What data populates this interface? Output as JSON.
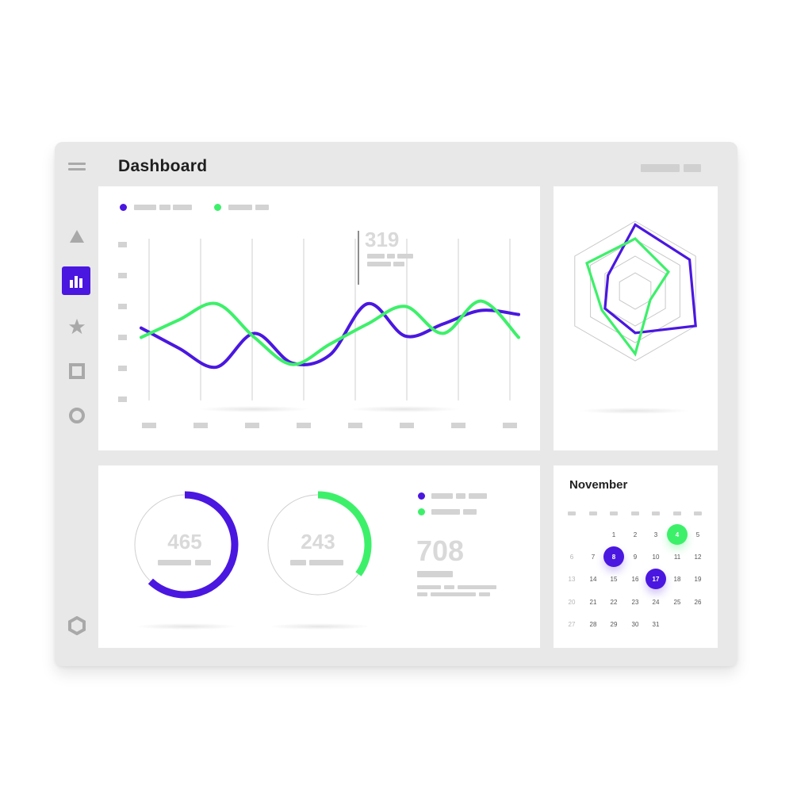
{
  "header": {
    "title": "Dashboard"
  },
  "colors": {
    "accent_purple": "#4a17e0",
    "accent_green": "#3df06a",
    "frame": "#e8e8e8",
    "placeholder": "#d3d3d3"
  },
  "sidebar": {
    "items": [
      {
        "icon": "triangle-icon",
        "active": false
      },
      {
        "icon": "bar-chart-icon",
        "active": true
      },
      {
        "icon": "star-icon",
        "active": false
      },
      {
        "icon": "square-icon",
        "active": false
      },
      {
        "icon": "circle-icon",
        "active": false
      }
    ],
    "footer_icon": "hexagon-icon"
  },
  "chart_data": [
    {
      "type": "line",
      "highlight_value": "319",
      "series": [
        {
          "color": "#4a17e0",
          "values": [
            0.42,
            0.27,
            0.13,
            0.38,
            0.16,
            0.22,
            0.6,
            0.36,
            0.45,
            0.55,
            0.52
          ]
        },
        {
          "color": "#3df06a",
          "values": [
            0.35,
            0.48,
            0.6,
            0.35,
            0.15,
            0.3,
            0.45,
            0.58,
            0.38,
            0.62,
            0.35
          ]
        }
      ]
    },
    {
      "type": "radar",
      "series": [
        {
          "color": "#4a17e0",
          "values": [
            0.95,
            0.9,
            1.0,
            0.6,
            0.5,
            0.45
          ]
        },
        {
          "color": "#3df06a",
          "values": [
            0.75,
            0.55,
            0.25,
            0.9,
            0.55,
            0.8
          ]
        }
      ]
    },
    {
      "type": "donut",
      "label": "465",
      "color": "#4a17e0",
      "fraction": 0.62
    },
    {
      "type": "donut",
      "label": "243",
      "color": "#3df06a",
      "fraction": 0.35
    }
  ],
  "summary": {
    "value": "708"
  },
  "calendar": {
    "month": "November",
    "rows": [
      [
        "",
        "",
        "1",
        "2",
        "3",
        "4",
        "5"
      ],
      [
        "6",
        "7",
        "8",
        "9",
        "10",
        "11",
        "12"
      ],
      [
        "13",
        "14",
        "15",
        "16",
        "17",
        "18",
        "19"
      ],
      [
        "20",
        "21",
        "22",
        "23",
        "24",
        "25",
        "26"
      ],
      [
        "27",
        "28",
        "29",
        "30",
        "31",
        "",
        ""
      ]
    ],
    "selected_purple": [
      "8",
      "17"
    ],
    "selected_green": [
      "4"
    ]
  }
}
